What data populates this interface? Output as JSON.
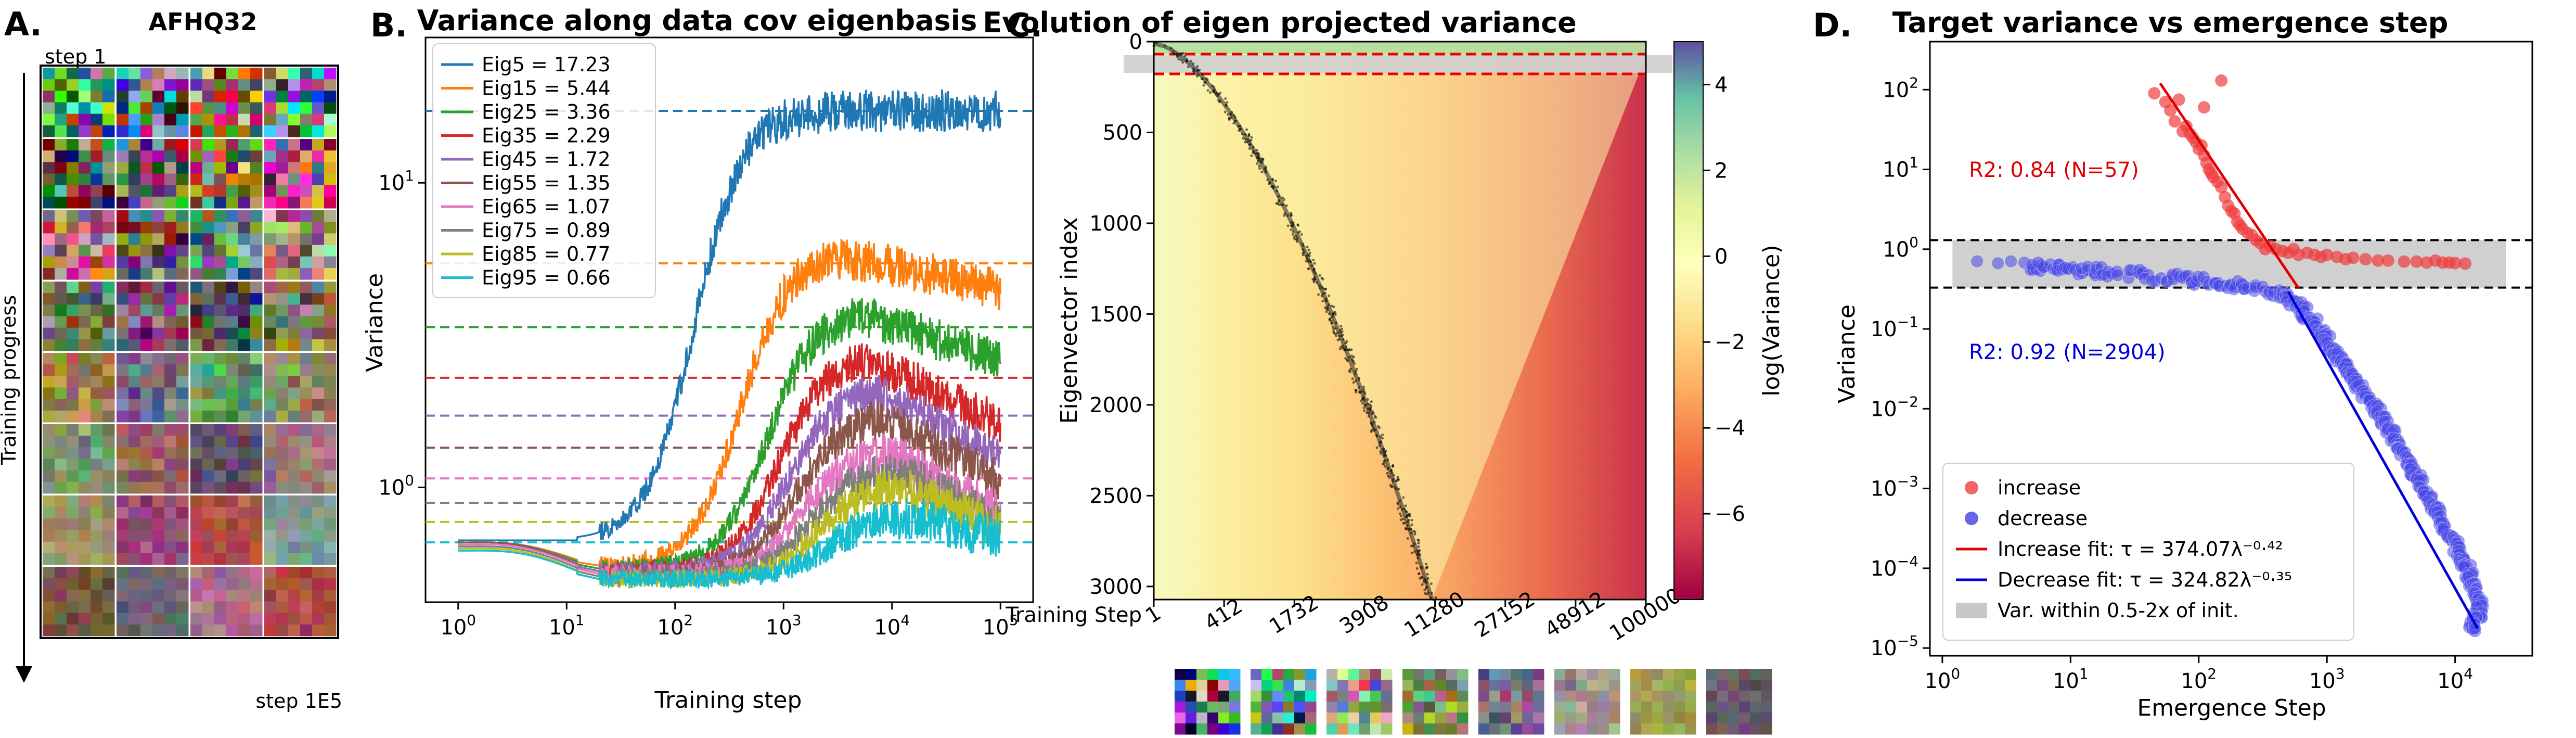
{
  "figure": {
    "panel_labels": [
      "A.",
      "B.",
      "C.",
      "D."
    ]
  },
  "panel_a": {
    "title": "AFHQ32",
    "top_label": "step 1",
    "bottom_label": "step 1E5",
    "side_label": "Training progress"
  },
  "chart_data": [
    {
      "id": "B",
      "type": "line",
      "title": "Variance along data cov eigenbasis",
      "xlabel": "Training step",
      "ylabel": "Variance",
      "xscale": "log",
      "yscale": "log",
      "xlim": [
        0.5,
        200000
      ],
      "ylim": [
        0.42,
        30
      ],
      "xticks": [
        {
          "v": 1,
          "base": "10",
          "exp": "0"
        },
        {
          "v": 10,
          "base": "10",
          "exp": "1"
        },
        {
          "v": 100,
          "base": "10",
          "exp": "2"
        },
        {
          "v": 1000,
          "base": "10",
          "exp": "3"
        },
        {
          "v": 10000,
          "base": "10",
          "exp": "4"
        },
        {
          "v": 100000,
          "base": "10",
          "exp": "5"
        }
      ],
      "yticks": [
        {
          "v": 1,
          "base": "10",
          "exp": "0"
        },
        {
          "v": 10,
          "base": "10",
          "exp": "1"
        }
      ],
      "legend_position": "top-left",
      "series": [
        {
          "name": "Eig5",
          "label": "Eig5 = 17.23",
          "color": "#1f77b4",
          "target": 17.23,
          "start": 0.67,
          "dip": 0.67,
          "tmid": 150,
          "final": 15.0,
          "decline": 0.0
        },
        {
          "name": "Eig15",
          "label": "Eig15 = 5.44",
          "color": "#ff7f0e",
          "target": 5.44,
          "start": 0.66,
          "dip": 0.55,
          "tmid": 400,
          "final": 5.2,
          "decline": 0.08
        },
        {
          "name": "Eig25",
          "label": "Eig25 = 3.36",
          "color": "#2ca02c",
          "target": 3.36,
          "start": 0.66,
          "dip": 0.54,
          "tmid": 700,
          "final": 3.3,
          "decline": 0.12
        },
        {
          "name": "Eig35",
          "label": "Eig35 = 2.29",
          "color": "#d62728",
          "target": 2.29,
          "start": 0.66,
          "dip": 0.53,
          "tmid": 900,
          "final": 2.35,
          "decline": 0.18
        },
        {
          "name": "Eig45",
          "label": "Eig45 = 1.72",
          "color": "#9467bd",
          "target": 1.72,
          "start": 0.66,
          "dip": 0.53,
          "tmid": 1100,
          "final": 1.85,
          "decline": 0.2
        },
        {
          "name": "Eig55",
          "label": "Eig55 = 1.35",
          "color": "#8c564b",
          "target": 1.35,
          "start": 0.66,
          "dip": 0.52,
          "tmid": 1300,
          "final": 1.5,
          "decline": 0.2
        },
        {
          "name": "Eig65",
          "label": "Eig65 = 1.07",
          "color": "#e377c2",
          "target": 1.07,
          "start": 0.65,
          "dip": 0.52,
          "tmid": 1500,
          "final": 1.15,
          "decline": 0.2
        },
        {
          "name": "Eig75",
          "label": "Eig75 = 0.89",
          "color": "#7f7f7f",
          "target": 0.89,
          "start": 0.64,
          "dip": 0.51,
          "tmid": 1800,
          "final": 1.0,
          "decline": 0.18
        },
        {
          "name": "Eig85",
          "label": "Eig85 = 0.77",
          "color": "#bcbd22",
          "target": 0.77,
          "start": 0.63,
          "dip": 0.5,
          "tmid": 2000,
          "final": 0.88,
          "decline": 0.15
        },
        {
          "name": "Eig95",
          "label": "Eig95 = 0.66",
          "color": "#17becf",
          "target": 0.66,
          "start": 0.62,
          "dip": 0.5,
          "tmid": 2500,
          "final": 0.7,
          "decline": 0.1
        }
      ]
    },
    {
      "id": "C",
      "type": "heatmap",
      "title": "Evolution of eigen projected variance",
      "ylabel": "Eigenvector index",
      "x_axis_label": "Training Step",
      "x_tick_labels": [
        "1",
        "412",
        "1732",
        "3908",
        "11280",
        "27152",
        "48912",
        "100000"
      ],
      "y_tick_labels": [
        "0",
        "500",
        "1000",
        "1500",
        "2000",
        "2500",
        "3000"
      ],
      "ylim": [
        3072,
        0
      ],
      "colorbar_label": "log(Variance)",
      "colorbar_range": [
        -8,
        5
      ],
      "colorbar_ticks": [
        "4",
        "2",
        "0",
        "−2",
        "−4",
        "−6"
      ],
      "colormap": "Spectral"
    },
    {
      "id": "D",
      "type": "scatter",
      "title": "Target variance vs emergence step",
      "xlabel": "Emergence Step",
      "ylabel": "Variance",
      "xscale": "log",
      "yscale": "log",
      "xlim": [
        0.8,
        40000
      ],
      "ylim": [
        8e-06,
        400
      ],
      "xticks": [
        {
          "v": 1,
          "base": "10",
          "exp": "0"
        },
        {
          "v": 10,
          "base": "10",
          "exp": "1"
        },
        {
          "v": 100,
          "base": "10",
          "exp": "2"
        },
        {
          "v": 1000,
          "base": "10",
          "exp": "3"
        },
        {
          "v": 10000,
          "base": "10",
          "exp": "4"
        }
      ],
      "yticks": [
        {
          "v": 1e-05,
          "base": "10",
          "exp": "−5"
        },
        {
          "v": 0.0001,
          "base": "10",
          "exp": "−4"
        },
        {
          "v": 0.001,
          "base": "10",
          "exp": "−3"
        },
        {
          "v": 0.01,
          "base": "10",
          "exp": "−2"
        },
        {
          "v": 0.1,
          "base": "10",
          "exp": "−1"
        },
        {
          "v": 1,
          "base": "10",
          "exp": "0"
        },
        {
          "v": 10,
          "base": "10",
          "exp": "1"
        },
        {
          "v": 100,
          "base": "10",
          "exp": "2"
        }
      ],
      "band": {
        "low": 0.33,
        "high": 1.3
      },
      "annotations": {
        "increase_r2": "R2: 0.84 (N=57)",
        "decrease_r2": "R2: 0.92 (N=2904)"
      },
      "legend": {
        "increase": "increase",
        "decrease": "decrease",
        "increase_fit": "Increase fit: τ = 374.07λ⁻⁰·⁴²",
        "decrease_fit": "Decrease fit: τ = 324.82λ⁻⁰·³⁵",
        "band": "Var. within 0.5-2x of init."
      },
      "increase_fit": {
        "coef": 374.07,
        "exp": -0.42,
        "xrange": [
          50,
          600
        ],
        "color": "#e00000"
      },
      "decrease_fit": {
        "coef": 324.82,
        "exp": -0.35,
        "xrange": [
          500,
          15000
        ],
        "color": "#0000dd"
      },
      "increase_points": [
        [
          45,
          90
        ],
        [
          55,
          70
        ],
        [
          60,
          55
        ],
        [
          65,
          40
        ],
        [
          70,
          75
        ],
        [
          75,
          30
        ],
        [
          80,
          35
        ],
        [
          85,
          28
        ],
        [
          90,
          25
        ],
        [
          95,
          22
        ],
        [
          100,
          18
        ],
        [
          105,
          20
        ],
        [
          110,
          15
        ],
        [
          115,
          12
        ],
        [
          120,
          10
        ],
        [
          125,
          9
        ],
        [
          130,
          8
        ],
        [
          140,
          7
        ],
        [
          150,
          6
        ],
        [
          160,
          4.5
        ],
        [
          170,
          3.5
        ],
        [
          180,
          3
        ],
        [
          190,
          2.8
        ],
        [
          200,
          2.2
        ],
        [
          210,
          2
        ],
        [
          220,
          1.8
        ],
        [
          240,
          1.6
        ],
        [
          260,
          1.5
        ],
        [
          280,
          1.3
        ],
        [
          300,
          1.2
        ],
        [
          330,
          1.0
        ],
        [
          360,
          1.1
        ],
        [
          400,
          1.0
        ],
        [
          450,
          0.95
        ],
        [
          500,
          0.9
        ],
        [
          550,
          1.0
        ],
        [
          600,
          0.85
        ],
        [
          700,
          0.9
        ],
        [
          800,
          0.85
        ],
        [
          900,
          0.8
        ],
        [
          1000,
          0.85
        ],
        [
          1200,
          0.8
        ],
        [
          1400,
          0.75
        ],
        [
          1600,
          0.78
        ],
        [
          2000,
          0.75
        ],
        [
          2500,
          0.72
        ],
        [
          3000,
          0.72
        ],
        [
          4000,
          0.7
        ],
        [
          5000,
          0.7
        ],
        [
          6000,
          0.68
        ],
        [
          7000,
          0.72
        ],
        [
          8000,
          0.68
        ],
        [
          9000,
          0.68
        ],
        [
          10000,
          0.67
        ],
        [
          12000,
          0.66
        ],
        [
          150,
          130
        ],
        [
          110,
          60
        ]
      ],
      "decrease_points": [
        [
          2,
          0.62
        ],
        [
          4.5,
          0.63
        ],
        [
          5,
          0.61
        ],
        [
          5.5,
          0.6
        ],
        [
          6,
          0.6
        ],
        [
          7,
          0.59
        ],
        [
          8,
          0.58
        ],
        [
          9,
          0.57
        ],
        [
          10,
          0.56
        ],
        [
          12,
          0.55
        ],
        [
          14,
          0.54
        ],
        [
          16,
          0.53
        ],
        [
          18,
          0.52
        ],
        [
          20,
          0.51
        ],
        [
          25,
          0.5
        ],
        [
          30,
          0.49
        ],
        [
          35,
          0.48
        ],
        [
          40,
          0.46
        ],
        [
          50,
          0.45
        ],
        [
          60,
          0.44
        ],
        [
          70,
          0.43
        ],
        [
          80,
          0.42
        ],
        [
          90,
          0.41
        ],
        [
          100,
          0.4
        ],
        [
          120,
          0.39
        ],
        [
          140,
          0.38
        ],
        [
          160,
          0.37
        ],
        [
          180,
          0.36
        ],
        [
          200,
          0.35
        ],
        [
          230,
          0.34
        ],
        [
          260,
          0.33
        ],
        [
          300,
          0.32
        ],
        [
          350,
          0.3
        ],
        [
          400,
          0.28
        ],
        [
          450,
          0.26
        ],
        [
          500,
          0.24
        ],
        [
          560,
          0.21
        ],
        [
          630,
          0.18
        ],
        [
          700,
          0.15
        ],
        [
          800,
          0.12
        ],
        [
          900,
          0.09
        ],
        [
          1000,
          0.07
        ],
        [
          1150,
          0.05
        ],
        [
          1300,
          0.04
        ],
        [
          1500,
          0.03
        ],
        [
          1700,
          0.022
        ],
        [
          2000,
          0.015
        ],
        [
          2300,
          0.011
        ],
        [
          2600,
          0.008
        ],
        [
          3000,
          0.0058
        ],
        [
          3400,
          0.0042
        ],
        [
          3800,
          0.003
        ],
        [
          4300,
          0.0021
        ],
        [
          4800,
          0.0015
        ],
        [
          5400,
          0.0011
        ],
        [
          6000,
          0.0008
        ],
        [
          6700,
          0.0006
        ],
        [
          7400,
          0.00045
        ],
        [
          8200,
          0.00034
        ],
        [
          9000,
          0.00026
        ],
        [
          10000,
          0.0002
        ],
        [
          11000,
          0.00015
        ],
        [
          12000,
          0.00011
        ],
        [
          13000,
          8e-05
        ],
        [
          14000,
          6e-05
        ],
        [
          15000,
          4.5e-05
        ],
        [
          16000,
          3.5e-05
        ],
        [
          15000,
          2.5e-05
        ],
        [
          14000,
          2e-05
        ],
        [
          13500,
          1.8e-05
        ]
      ]
    }
  ]
}
